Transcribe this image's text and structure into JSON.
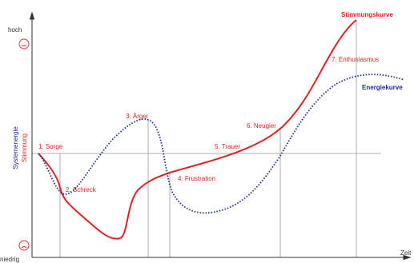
{
  "axis": {
    "top": "hoch",
    "bottom": "niedrig",
    "x": "Zeit",
    "y_energy": "Systemenergie",
    "y_mood": "Stimmung"
  },
  "curves": {
    "mood": "Stimmungskurve",
    "energy": "Energiekurve"
  },
  "phases": [
    "1. Sorge",
    "2. Schreck",
    "3. Ärger",
    "4. Frustration",
    "5. Trauer",
    "6. Neugier",
    "7. Enthusiasmus"
  ]
}
